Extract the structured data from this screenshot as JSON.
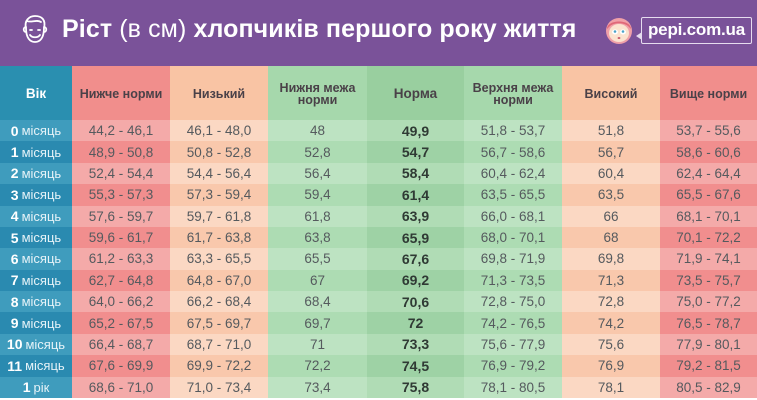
{
  "header": {
    "title_bold_1": "Ріст",
    "title_light": "(в см)",
    "title_bold_2": "хлопчиків першого року життя",
    "boy_icon": "boy-face-icon",
    "brand_icon": "girl-mascot-icon",
    "brand": "pepi.com.ua"
  },
  "colors": {
    "banner": "#7a5299",
    "age_column": "#2a8fb0",
    "below_norm": "#f18e8c",
    "low": "#f9c4a4",
    "norm_range": "#a6d8ac",
    "norm": "#99cf9f"
  },
  "table": {
    "columns": [
      "Вік",
      "Нижче норми",
      "Низький",
      "Нижня межа норми",
      "Норма",
      "Верхня межа норми",
      "Високий",
      "Вище норми"
    ],
    "rows": [
      {
        "age_num": "0",
        "age_unit": "місяць",
        "cells": [
          "44,2 - 46,1",
          "46,1 - 48,0",
          "48",
          "49,9",
          "51,8 - 53,7",
          "51,8",
          "53,7 - 55,6"
        ]
      },
      {
        "age_num": "1",
        "age_unit": "місяць",
        "cells": [
          "48,9 - 50,8",
          "50,8 - 52,8",
          "52,8",
          "54,7",
          "56,7 - 58,6",
          "56,7",
          "58,6 - 60,6"
        ]
      },
      {
        "age_num": "2",
        "age_unit": "місяць",
        "cells": [
          "52,4 - 54,4",
          "54,4 - 56,4",
          "56,4",
          "58,4",
          "60,4 - 62,4",
          "60,4",
          "62,4 - 64,4"
        ]
      },
      {
        "age_num": "3",
        "age_unit": "місяць",
        "cells": [
          "55,3 - 57,3",
          "57,3 - 59,4",
          "59,4",
          "61,4",
          "63,5 - 65,5",
          "63,5",
          "65,5 - 67,6"
        ]
      },
      {
        "age_num": "4",
        "age_unit": "місяць",
        "cells": [
          "57,6 - 59,7",
          "59,7 - 61,8",
          "61,8",
          "63,9",
          "66,0 - 68,1",
          "66",
          "68,1 - 70,1"
        ]
      },
      {
        "age_num": "5",
        "age_unit": "місяць",
        "cells": [
          "59,6 - 61,7",
          "61,7 - 63,8",
          "63,8",
          "65,9",
          "68,0 - 70,1",
          "68",
          "70,1 - 72,2"
        ]
      },
      {
        "age_num": "6",
        "age_unit": "місяць",
        "cells": [
          "61,2 - 63,3",
          "63,3 - 65,5",
          "65,5",
          "67,6",
          "69,8 - 71,9",
          "69,8",
          "71,9 - 74,1"
        ]
      },
      {
        "age_num": "7",
        "age_unit": "місяць",
        "cells": [
          "62,7 - 64,8",
          "64,8 - 67,0",
          "67",
          "69,2",
          "71,3 - 73,5",
          "71,3",
          "73,5 - 75,7"
        ]
      },
      {
        "age_num": "8",
        "age_unit": "місяць",
        "cells": [
          "64,0 - 66,2",
          "66,2 - 68,4",
          "68,4",
          "70,6",
          "72,8 - 75,0",
          "72,8",
          "75,0 - 77,2"
        ]
      },
      {
        "age_num": "9",
        "age_unit": "місяць",
        "cells": [
          "65,2 - 67,5",
          "67,5 - 69,7",
          "69,7",
          "72",
          "74,2 - 76,5",
          "74,2",
          "76,5 - 78,7"
        ]
      },
      {
        "age_num": "10",
        "age_unit": "місяць",
        "cells": [
          "66,4 - 68,7",
          "68,7 - 71,0",
          "71",
          "73,3",
          "75,6 - 77,9",
          "75,6",
          "77,9 - 80,1"
        ]
      },
      {
        "age_num": "11",
        "age_unit": "місяць",
        "cells": [
          "67,6 - 69,9",
          "69,9 - 72,2",
          "72,2",
          "74,5",
          "76,9 - 79,2",
          "76,9",
          "79,2 - 81,5"
        ]
      },
      {
        "age_num": "1",
        "age_unit": "рік",
        "cells": [
          "68,6 - 71,0",
          "71,0 - 73,4",
          "73,4",
          "75,8",
          "78,1 - 80,5",
          "78,1",
          "80,5 - 82,9"
        ]
      }
    ]
  }
}
